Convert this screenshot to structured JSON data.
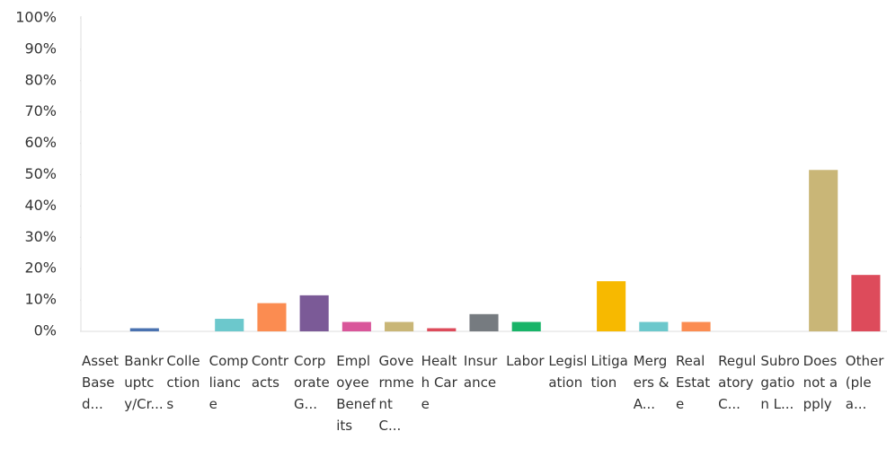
{
  "chart_data": {
    "type": "bar",
    "categories": [
      "Asset Based...",
      "Bankruptcy/Cr...",
      "Collections",
      "Compliance",
      "Contracts",
      "Corporate G...",
      "Employee Benefits",
      "Government C...",
      "Health Care",
      "Insurance",
      "Labor",
      "Legislation",
      "Litigation",
      "Mergers & A...",
      "Real Estate",
      "Regulatory C...",
      "Subrogation L...",
      "Does not apply",
      "Other (plea..."
    ],
    "values": [
      0,
      1,
      0,
      4,
      9,
      11.5,
      3,
      3,
      1,
      5.5,
      3,
      0,
      16,
      3,
      3,
      0,
      0,
      51.5,
      18
    ],
    "colors": [
      "#18b468",
      "#4a72b0",
      "#f7b900",
      "#6cc8cc",
      "#fb8c51",
      "#7b5a97",
      "#d9569a",
      "#c9b677",
      "#dd4b5b",
      "#767b80",
      "#18b468",
      "#4a72b0",
      "#f7b900",
      "#6cc8cc",
      "#fb8c51",
      "#7b5a97",
      "#d9569a",
      "#c9b677",
      "#dd4b5b"
    ],
    "ylim": [
      0,
      100
    ],
    "yticks": [
      {
        "value": 0,
        "label": "0%"
      },
      {
        "value": 10,
        "label": "10%"
      },
      {
        "value": 20,
        "label": "20%"
      },
      {
        "value": 30,
        "label": "30%"
      },
      {
        "value": 40,
        "label": "40%"
      },
      {
        "value": 50,
        "label": "50%"
      },
      {
        "value": 60,
        "label": "60%"
      },
      {
        "value": 70,
        "label": "70%"
      },
      {
        "value": 80,
        "label": "80%"
      },
      {
        "value": 90,
        "label": "90%"
      },
      {
        "value": 100,
        "label": "100%"
      }
    ],
    "grid": false
  }
}
